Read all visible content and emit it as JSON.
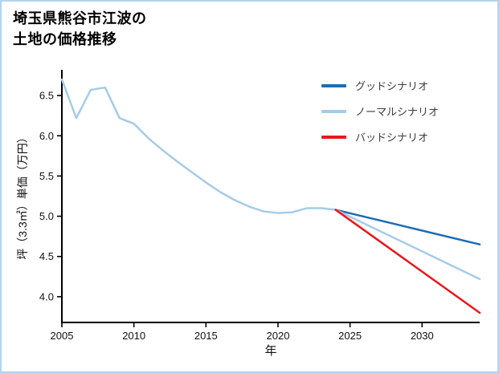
{
  "page": {
    "background": "#ffffff",
    "border_color": "#b3d3ee"
  },
  "title": {
    "line1": "埼玉県熊谷市江波の",
    "line2": "土地の価格推移"
  },
  "axes": {
    "xlabel": "年",
    "ylabel": "坪（3.3㎡）単価（万円）"
  },
  "legend": {
    "items": [
      {
        "label": "グッドシナリオ",
        "color": "#1b6cb5"
      },
      {
        "label": "ノーマルシナリオ",
        "color": "#a6cbe8"
      },
      {
        "label": "バッドシナリオ",
        "color": "#e8191e"
      }
    ]
  },
  "chart_data": {
    "type": "line",
    "title": "埼玉県熊谷市江波の土地の価格推移",
    "xlabel": "年",
    "ylabel": "坪（3.3㎡）単価（万円）",
    "xlim": [
      2005,
      2034
    ],
    "ylim": [
      3.68,
      6.82
    ],
    "x_ticks": [
      "2005",
      "2010",
      "2015",
      "2020",
      "2025",
      "2030"
    ],
    "y_ticks": [
      "4.0",
      "4.5",
      "5.0",
      "5.5",
      "6.0",
      "6.5"
    ],
    "grid": false,
    "legend_position": "upper right",
    "series": [
      {
        "id": "history",
        "label": "",
        "color": "#a6cbe8",
        "in_legend": false,
        "x": [
          2005,
          2006,
          2007,
          2008,
          2009,
          2010,
          2011,
          2012,
          2013,
          2014,
          2015,
          2016,
          2017,
          2018,
          2019,
          2020,
          2021,
          2022,
          2023,
          2024
        ],
        "values": [
          6.7,
          6.22,
          6.57,
          6.6,
          6.22,
          6.15,
          5.97,
          5.82,
          5.68,
          5.55,
          5.42,
          5.3,
          5.2,
          5.12,
          5.06,
          5.04,
          5.05,
          5.1,
          5.1,
          5.08
        ]
      },
      {
        "id": "good-scenario",
        "label": "グッドシナリオ",
        "color": "#1b6cb5",
        "in_legend": true,
        "x": [
          2024,
          2034
        ],
        "values": [
          5.08,
          4.65
        ]
      },
      {
        "id": "normal-scenario",
        "label": "ノーマルシナリオ",
        "color": "#a6cbe8",
        "in_legend": true,
        "x": [
          2024,
          2034
        ],
        "values": [
          5.08,
          4.22
        ]
      },
      {
        "id": "bad-scenario",
        "label": "バッドシナリオ",
        "color": "#e8191e",
        "in_legend": true,
        "x": [
          2024,
          2034
        ],
        "values": [
          5.08,
          3.8
        ]
      }
    ]
  }
}
